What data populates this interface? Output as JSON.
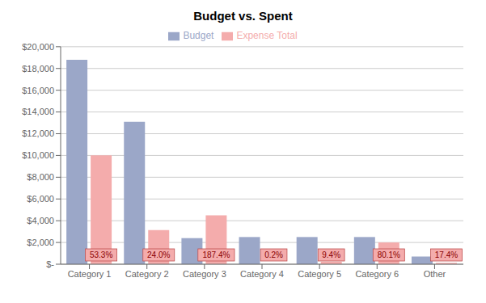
{
  "chart_data": {
    "type": "bar",
    "title": "Budget vs. Spent",
    "categories": [
      "Category 1",
      "Category 2",
      "Category 3",
      "Category 4",
      "Category 5",
      "Category 6",
      "Other"
    ],
    "series": [
      {
        "name": "Budget",
        "color": "#9BA7C8",
        "values": [
          18800,
          13100,
          2400,
          2500,
          2500,
          2500,
          700
        ]
      },
      {
        "name": "Expense Total",
        "color": "#F4ACAC",
        "values": [
          10020,
          3144,
          4498,
          5,
          235,
          2002,
          122
        ],
        "annotations": [
          "53.3%",
          "24.0%",
          "187.4%",
          "0.2%",
          "9.4%",
          "80.1%",
          "17.4%"
        ]
      }
    ],
    "ylim": [
      0,
      20000
    ],
    "yticks": [
      {
        "value": 0,
        "label": "$-"
      },
      {
        "value": 2000,
        "label": "$2,000"
      },
      {
        "value": 4000,
        "label": "$4,000"
      },
      {
        "value": 6000,
        "label": "$6,000"
      },
      {
        "value": 8000,
        "label": "$8,000"
      },
      {
        "value": 10000,
        "label": "$10,000"
      },
      {
        "value": 12000,
        "label": "$12,000"
      },
      {
        "value": 14000,
        "label": "$14,000"
      },
      {
        "value": 16000,
        "label": "$16,000"
      },
      {
        "value": 18000,
        "label": "$18,000"
      },
      {
        "value": 20000,
        "label": "$20,000"
      }
    ],
    "grid": true,
    "legend": "top"
  }
}
